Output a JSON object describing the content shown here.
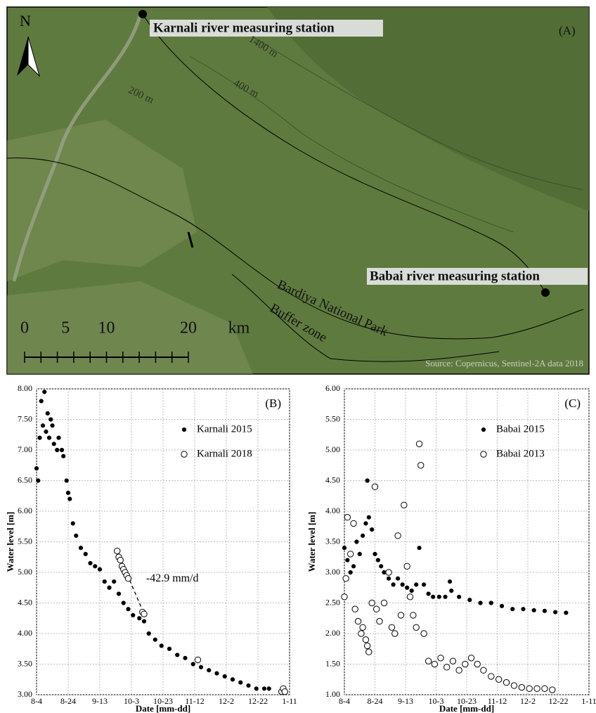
{
  "map": {
    "panel_label": "(A)",
    "north": "N",
    "stations": [
      "Karnali river measuring station",
      "Babai river measuring station"
    ],
    "contours": [
      "1400 m",
      "400 m",
      "200 m"
    ],
    "areas": [
      "Bardiya National Park",
      "Buffer zone"
    ],
    "scale": [
      0,
      5,
      10,
      20
    ],
    "scale_unit": "km",
    "source": "Source: Copernicus, Sentinel-2A data 2018"
  },
  "chart_data": [
    {
      "type": "scatter",
      "panel_label": "(B)",
      "annotation": "-42.9 mm/d",
      "xlabel": "Date [mm-dd]",
      "ylabel": "Water level [m]",
      "xlim": [
        "8-4",
        "1-11"
      ],
      "xticks": [
        "8-4",
        "8-24",
        "9-13",
        "10-3",
        "10-23",
        "11-12",
        "12-2",
        "12-22",
        "1-11"
      ],
      "ylim": [
        3,
        8
      ],
      "yticks": [
        {
          "value": 3,
          "label": "3.00"
        },
        {
          "value": 3.5,
          "label": "3.50"
        },
        {
          "value": 4,
          "label": "4.00"
        },
        {
          "value": 4.5,
          "label": "4.50"
        },
        {
          "value": 5,
          "label": "5.00"
        },
        {
          "value": 5.5,
          "label": "5.50"
        },
        {
          "value": 6,
          "label": "6.00"
        },
        {
          "value": 6.5,
          "label": "6.50"
        },
        {
          "value": 7,
          "label": "7.00"
        },
        {
          "value": 7.5,
          "label": "7.50"
        },
        {
          "value": 8,
          "label": "8.00"
        }
      ],
      "grid": true,
      "legend": "upper right",
      "series": [
        {
          "name": "Karnali 2015",
          "color": "#000000",
          "marker": "filled",
          "x": [
            "8-4",
            "8-5",
            "8-6",
            "8-7",
            "8-8",
            "8-9",
            "8-10",
            "8-11",
            "8-12",
            "8-13",
            "8-14",
            "8-15",
            "8-17",
            "8-18",
            "8-20",
            "8-21",
            "8-23",
            "8-24",
            "8-25",
            "8-27",
            "8-29",
            "9-1",
            "9-4",
            "9-7",
            "9-10",
            "9-13",
            "9-16",
            "9-19",
            "9-22",
            "9-25",
            "9-28",
            "10-1",
            "10-4",
            "10-8",
            "10-11",
            "10-14",
            "10-18",
            "10-22",
            "10-27",
            "11-1",
            "11-6",
            "11-11",
            "11-16",
            "11-21",
            "11-26",
            "12-1",
            "12-6",
            "12-11",
            "12-16",
            "12-21",
            "12-26",
            "12-29"
          ],
          "values": [
            6.7,
            6.5,
            7.2,
            7.8,
            7.4,
            7.95,
            7.3,
            7.6,
            7.2,
            7.5,
            7.4,
            7.1,
            7.0,
            7.2,
            7.0,
            6.9,
            6.5,
            6.3,
            6.2,
            5.8,
            5.6,
            5.4,
            5.3,
            5.15,
            5.1,
            5.05,
            4.85,
            4.75,
            4.85,
            4.65,
            4.5,
            4.4,
            4.3,
            4.25,
            4.2,
            4.0,
            3.9,
            3.8,
            3.75,
            3.65,
            3.6,
            3.5,
            3.45,
            3.4,
            3.35,
            3.3,
            3.25,
            3.2,
            3.15,
            3.1,
            3.1,
            3.1
          ]
        },
        {
          "name": "Karnali 2018",
          "color": "#000000",
          "marker": "open",
          "x": [
            "9-24",
            "9-25",
            "9-26",
            "9-27",
            "9-28",
            "9-29",
            "9-30",
            "10-1",
            "10-10",
            "10-11",
            "11-14",
            "1-6",
            "1-7",
            "1-8"
          ],
          "values": [
            5.35,
            5.25,
            5.2,
            5.1,
            5.05,
            5.0,
            4.95,
            4.9,
            4.35,
            4.32,
            3.57,
            3.05,
            3.1,
            3.05
          ]
        }
      ]
    },
    {
      "type": "scatter",
      "panel_label": "(C)",
      "xlabel": "Date [mm-dd]",
      "ylabel": "Water level [m]",
      "xlim": [
        "8-4",
        "1-11"
      ],
      "xticks": [
        "8-4",
        "8-24",
        "9-13",
        "10-3",
        "10-23",
        "11-12",
        "12-2",
        "12-22",
        "1-11"
      ],
      "ylim": [
        1,
        6
      ],
      "yticks": [
        {
          "value": 1,
          "label": "1.00"
        },
        {
          "value": 1.5,
          "label": "1.50"
        },
        {
          "value": 2,
          "label": "2.00"
        },
        {
          "value": 2.5,
          "label": "2.50"
        },
        {
          "value": 3,
          "label": "3.00"
        },
        {
          "value": 3.5,
          "label": "3.50"
        },
        {
          "value": 4,
          "label": "4.00"
        },
        {
          "value": 4.5,
          "label": "4.50"
        },
        {
          "value": 5,
          "label": "5.00"
        },
        {
          "value": 5.5,
          "label": "5.50"
        },
        {
          "value": 6,
          "label": "6.00"
        }
      ],
      "grid": true,
      "legend": "upper right",
      "series": [
        {
          "name": "Babai 2015",
          "color": "#000000",
          "marker": "filled",
          "x": [
            "8-4",
            "8-6",
            "8-8",
            "8-10",
            "8-12",
            "8-14",
            "8-16",
            "8-18",
            "8-19",
            "8-20",
            "8-22",
            "8-24",
            "8-26",
            "8-28",
            "8-30",
            "9-2",
            "9-5",
            "9-8",
            "9-11",
            "9-14",
            "9-17",
            "9-20",
            "9-22",
            "9-25",
            "9-28",
            "10-1",
            "10-5",
            "10-9",
            "10-12",
            "10-13",
            "10-18",
            "10-25",
            "11-1",
            "11-8",
            "11-15",
            "11-22",
            "11-29",
            "12-6",
            "12-13",
            "12-20",
            "12-27"
          ],
          "values": [
            3.4,
            3.2,
            3.0,
            3.1,
            3.5,
            3.3,
            3.6,
            3.8,
            4.5,
            3.9,
            3.7,
            3.3,
            3.2,
            3.1,
            3.0,
            2.9,
            2.8,
            2.9,
            2.8,
            2.75,
            2.7,
            2.8,
            3.4,
            2.8,
            2.65,
            2.6,
            2.6,
            2.6,
            2.85,
            2.7,
            2.6,
            2.55,
            2.5,
            2.5,
            2.45,
            2.4,
            2.4,
            2.38,
            2.37,
            2.35,
            2.34
          ]
        },
        {
          "name": "Babai 2013",
          "color": "#000000",
          "marker": "open",
          "x": [
            "8-4",
            "8-5",
            "8-6",
            "8-8",
            "8-10",
            "8-11",
            "8-13",
            "8-15",
            "8-16",
            "8-18",
            "8-19",
            "8-20",
            "8-22",
            "8-24",
            "8-25",
            "8-27",
            "8-30",
            "9-2",
            "9-4",
            "9-6",
            "9-8",
            "9-10",
            "9-12",
            "9-14",
            "9-16",
            "9-18",
            "9-20",
            "9-22",
            "9-23",
            "9-25",
            "9-28",
            "10-2",
            "10-6",
            "10-10",
            "10-14",
            "10-18",
            "10-22",
            "10-26",
            "10-30",
            "11-3",
            "11-8",
            "11-13",
            "11-18",
            "11-23",
            "11-28",
            "12-3",
            "12-8",
            "12-13",
            "12-18"
          ],
          "values": [
            2.6,
            2.9,
            3.9,
            3.3,
            3.8,
            2.4,
            2.2,
            2.0,
            2.1,
            1.9,
            1.8,
            1.7,
            2.5,
            4.4,
            2.4,
            2.2,
            2.5,
            3.0,
            2.1,
            2.0,
            3.6,
            2.3,
            4.1,
            3.1,
            2.6,
            2.3,
            2.1,
            5.1,
            4.75,
            2.0,
            1.55,
            1.5,
            1.6,
            1.45,
            1.55,
            1.4,
            1.5,
            1.6,
            1.5,
            1.4,
            1.3,
            1.25,
            1.2,
            1.15,
            1.12,
            1.1,
            1.1,
            1.1,
            1.08
          ]
        }
      ]
    }
  ]
}
